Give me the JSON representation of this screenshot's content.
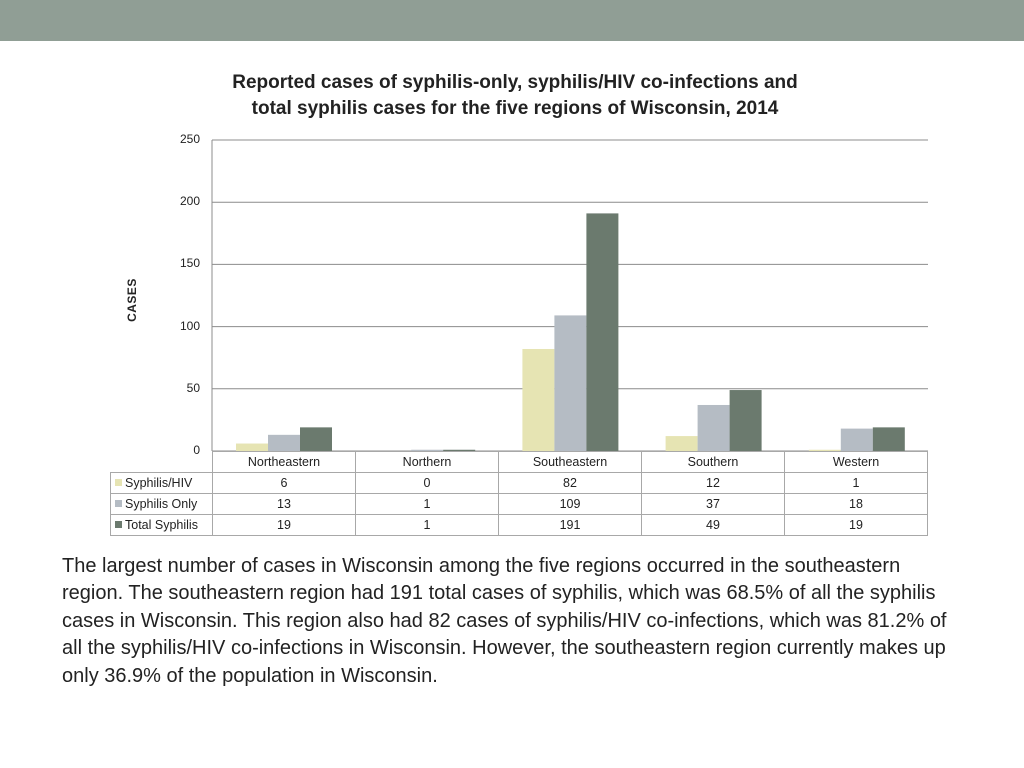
{
  "slide": {
    "header_color": "#909e95",
    "description": "The largest number of cases in Wisconsin among the five regions occurred in the southeastern region. The southeastern region had 191 total cases of syphilis, which was 68.5% of all the syphilis cases in Wisconsin. This region also had 82 cases of syphilis/HIV co-infections, which was 81.2% of all the syphilis/HIV co-infections in Wisconsin. However, the southeastern region currently makes up only 36.9% of the population in Wisconsin."
  },
  "chart_data": {
    "type": "bar",
    "title_line1": "Reported cases of syphilis-only, syphilis/HIV co-infections and",
    "title_line2": "total syphilis cases for the five regions of Wisconsin, 2014",
    "xlabel": "",
    "ylabel": "CASES",
    "ylim": [
      0,
      250
    ],
    "yticks": [
      "0",
      "50",
      "100",
      "150",
      "200",
      "250"
    ],
    "grid": true,
    "legend_placement": "data table below chart",
    "categories": [
      "Northeastern",
      "Northern",
      "Southeastern",
      "Southern",
      "Western"
    ],
    "series": [
      {
        "name": "Syphilis/HIV",
        "color": "#e6e4b3",
        "values": [
          6,
          0,
          82,
          12,
          1
        ]
      },
      {
        "name": "Syphilis Only",
        "color": "#b5bcc4",
        "values": [
          13,
          1,
          109,
          37,
          18
        ]
      },
      {
        "name": "Total Syphilis",
        "color": "#6b7a6e",
        "values": [
          19,
          1,
          191,
          49,
          19
        ]
      }
    ]
  }
}
